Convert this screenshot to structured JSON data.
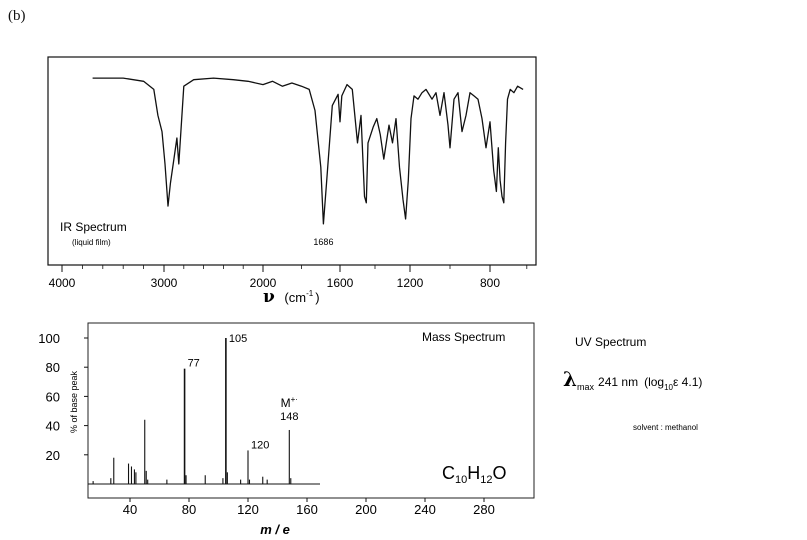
{
  "panel_label": "(b)",
  "chart_data": [
    {
      "type": "line",
      "title": "IR Spectrum",
      "subtitle": "(liquid film)",
      "xlabel_symbol": "ν",
      "xlabel_unit": "(cm",
      "xlabel_exp": "-1",
      "xlabel_close": ")",
      "x_reversed": true,
      "xlim": [
        4100,
        550
      ],
      "ylim": [
        0,
        100
      ],
      "x_ticks": [
        {
          "value": 4000,
          "label": "4000"
        },
        {
          "value": 3000,
          "label": "3000"
        },
        {
          "value": 2000,
          "label": "2000"
        },
        {
          "value": 1600,
          "label": "1600"
        },
        {
          "value": 1200,
          "label": "1200"
        },
        {
          "value": 800,
          "label": "800"
        }
      ],
      "annotation": {
        "x": 1686,
        "label": "1686"
      },
      "x": [
        3700,
        3400,
        3200,
        3100,
        3060,
        3020,
        2990,
        2960,
        2935,
        2900,
        2870,
        2850,
        2800,
        2700,
        2500,
        2300,
        2150,
        2000,
        1950,
        1900,
        1850,
        1800,
        1760,
        1730,
        1700,
        1686,
        1670,
        1640,
        1610,
        1600,
        1590,
        1560,
        1530,
        1500,
        1480,
        1460,
        1450,
        1440,
        1410,
        1390,
        1370,
        1350,
        1320,
        1300,
        1280,
        1260,
        1240,
        1225,
        1210,
        1195,
        1180,
        1160,
        1140,
        1120,
        1090,
        1070,
        1050,
        1030,
        1010,
        1000,
        980,
        960,
        940,
        920,
        900,
        880,
        860,
        840,
        820,
        800,
        780,
        765,
        755,
        745,
        735,
        725,
        715,
        705,
        690,
        670,
        650,
        620
      ],
      "y": [
        95,
        95,
        93,
        88,
        72,
        62,
        42,
        16,
        30,
        45,
        58,
        42,
        90,
        94,
        95,
        94,
        93,
        91,
        93,
        90,
        92,
        90,
        88,
        75,
        40,
        5,
        30,
        78,
        85,
        68,
        84,
        91,
        88,
        55,
        72,
        22,
        18,
        55,
        65,
        70,
        60,
        45,
        66,
        55,
        70,
        40,
        20,
        8,
        32,
        70,
        84,
        82,
        86,
        88,
        82,
        86,
        72,
        86,
        66,
        52,
        82,
        86,
        62,
        72,
        86,
        84,
        82,
        70,
        52,
        68,
        38,
        25,
        52,
        32,
        22,
        18,
        55,
        82,
        88,
        86,
        90,
        88
      ]
    },
    {
      "type": "bar",
      "title": "Mass Spectrum",
      "formula_main": "C",
      "formula_sub1": "10",
      "formula_h": "H",
      "formula_sub2": "12",
      "formula_o": "O",
      "xlabel": "m / e",
      "ylabel": "% of base peak",
      "xlim": [
        0,
        320
      ],
      "ylim": [
        0,
        100
      ],
      "x_ticks": [
        40,
        80,
        120,
        160,
        200,
        240,
        280
      ],
      "y_ticks": [
        20,
        40,
        60,
        80,
        100
      ],
      "x": [
        15,
        27,
        29,
        39,
        41,
        43,
        44,
        50,
        51,
        52,
        65,
        77,
        78,
        91,
        103,
        105,
        106,
        115,
        120,
        121,
        130,
        133,
        148,
        149
      ],
      "values": [
        2,
        4,
        18,
        14,
        12,
        10,
        8,
        44,
        9,
        3,
        3,
        79,
        6,
        6,
        4,
        100,
        8,
        3,
        23,
        3,
        5,
        3,
        37,
        4
      ],
      "labels": [
        {
          "x": 77,
          "text": "77"
        },
        {
          "x": 105,
          "text": "105"
        },
        {
          "x": 120,
          "text": "120"
        }
      ],
      "molecular_ion": {
        "x": 148,
        "text": "M",
        "superscript": "+·",
        "mass": "148"
      }
    }
  ],
  "uv": {
    "title": "UV Spectrum",
    "lambda_symbol": "λ",
    "lambda_sub": "max",
    "value": "241 nm",
    "log_open": "(log",
    "log_sub": "10",
    "log_rest": "ε  4.1)",
    "solvent": "solvent : methanol"
  }
}
